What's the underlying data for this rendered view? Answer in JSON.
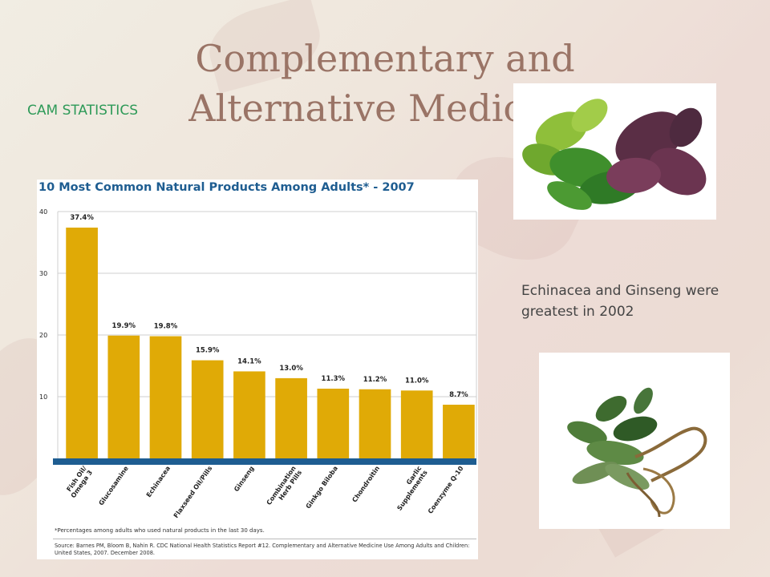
{
  "slide": {
    "title": "Complementary and Alternative Medicine",
    "subtitle": "CAM STATISTICS",
    "note": "Echinacea and Ginseng were greatest in 2002"
  },
  "colors": {
    "bar": "#e0aa06",
    "baseline": "#1e5d91",
    "title_text": "#1e5d91",
    "grid": "#cfcfcf"
  },
  "chart_data": {
    "type": "bar",
    "title": "10 Most Common Natural Products Among Adults* - 2007",
    "categories": [
      "Fish Oil/ Omega 3",
      "Glucosamine",
      "Echinacea",
      "Flaxseed Oil/Pills",
      "Ginseng",
      "Combination Herb Pills",
      "Ginkgo Biloba",
      "Chondroitin",
      "Garlic Supplements",
      "Coenzyme Q-10"
    ],
    "category_lines": [
      [
        "Fish Oil/",
        "Omega 3"
      ],
      [
        "Glucosamine"
      ],
      [
        "Echinacea"
      ],
      [
        "Flaxseed Oil/Pills"
      ],
      [
        "Ginseng"
      ],
      [
        "Combination",
        "Herb Pills"
      ],
      [
        "Ginkgo Biloba"
      ],
      [
        "Chondroitin"
      ],
      [
        "Garlic",
        "Supplements"
      ],
      [
        "Coenzyme Q-10"
      ]
    ],
    "values": [
      37.4,
      19.9,
      19.8,
      15.9,
      14.1,
      13.0,
      11.3,
      11.2,
      11.0,
      8.7
    ],
    "value_labels": [
      "37.4%",
      "19.9%",
      "19.8%",
      "15.9%",
      "14.1%",
      "13.0%",
      "11.3%",
      "11.2%",
      "11.0%",
      "8.7%"
    ],
    "yticks": [
      "10",
      "20",
      "30",
      "40"
    ],
    "ylim": [
      0,
      40
    ],
    "grid": true,
    "footnote": "*Percentages among adults who used natural products in the last 30 days.",
    "source": "Source: Barnes PM, Bloom B, Nahin R. CDC National Health Statistics Report #12. Complementary and Alternative Medicine Use Among Adults and Children: United States, 2007. December 2008."
  }
}
